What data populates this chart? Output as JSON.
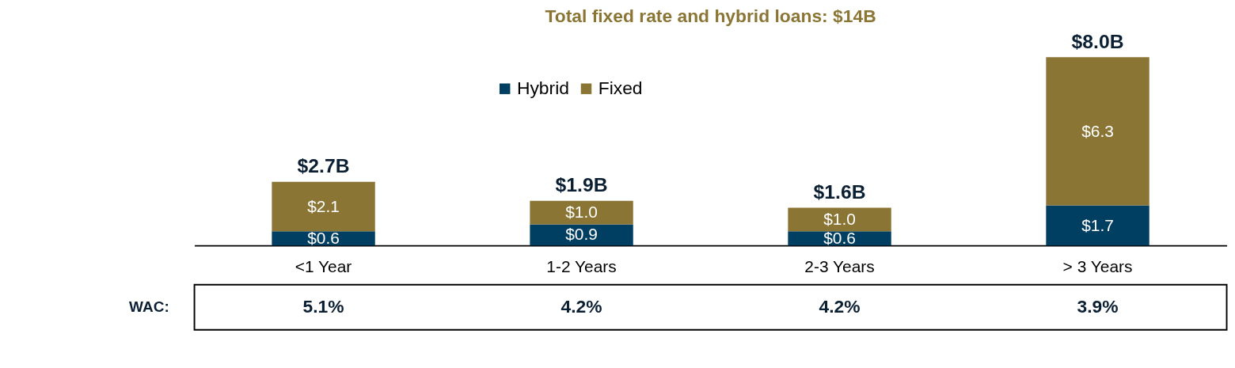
{
  "chart_data": {
    "type": "bar",
    "title": "Total fixed rate and hybrid loans: $14B",
    "categories": [
      "<1 Year",
      "1-2 Years",
      "2-3 Years",
      "> 3 Years"
    ],
    "stacked": true,
    "data_labels": true,
    "legend": "top",
    "grid": false,
    "series": [
      {
        "name": "Hybrid",
        "color": "#003f62",
        "values": [
          0.6,
          0.9,
          0.6,
          1.7
        ],
        "value_labels": [
          "$0.6",
          "$0.9",
          "$0.6",
          "$1.7"
        ]
      },
      {
        "name": "Fixed",
        "color": "#8b7535",
        "values": [
          2.1,
          1.0,
          1.0,
          6.3
        ],
        "value_labels": [
          "$2.1",
          "$1.0",
          "$1.0",
          "$6.3"
        ]
      }
    ],
    "totals": [
      "$2.7B",
      "$1.9B",
      "$1.6B",
      "$8.0B"
    ],
    "annotations": [
      "WAC:",
      "5.1%",
      "4.2%",
      "4.2%",
      "3.9%"
    ]
  }
}
